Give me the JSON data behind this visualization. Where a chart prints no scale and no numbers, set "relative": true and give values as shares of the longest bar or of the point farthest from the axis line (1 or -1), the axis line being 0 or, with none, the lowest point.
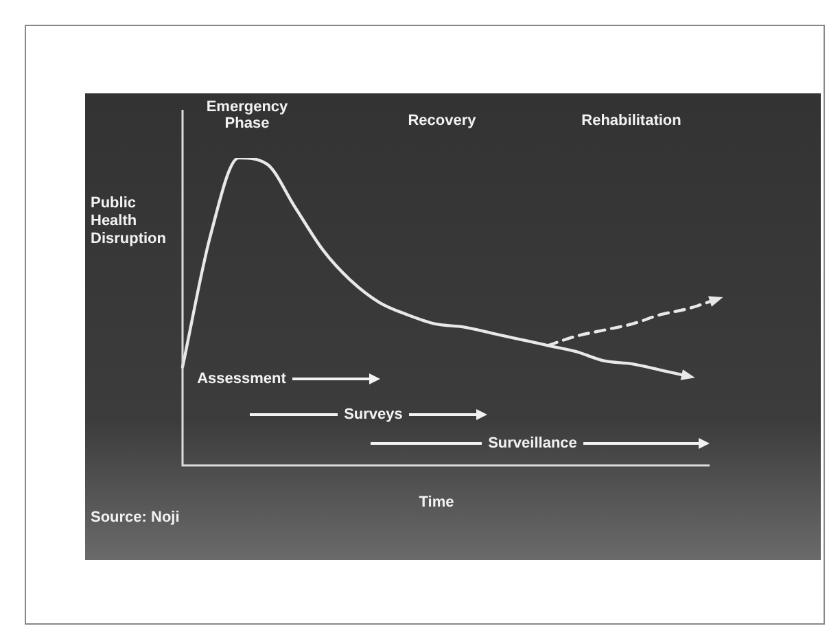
{
  "chart_data": {
    "type": "line",
    "relative": true,
    "ylabel": "Public Health Disruption",
    "xlabel": "Time",
    "categories": [
      null,
      null,
      null,
      null,
      null,
      null,
      null,
      null,
      null,
      null,
      null,
      null,
      null,
      null,
      null,
      null,
      null,
      null,
      null,
      null
    ],
    "series": [
      {
        "color": "#e8e8e8",
        "line_style": "solid",
        "values": [
          0.32,
          0.75,
          1.0,
          0.98,
          0.84,
          0.7,
          0.6,
          0.53,
          0.49,
          0.46,
          0.45,
          0.43,
          0.41,
          0.39,
          0.37,
          0.34,
          0.33,
          0.31,
          0.29,
          null
        ]
      },
      {
        "color": "#e8e8e8",
        "line_style": "dashed",
        "values": [
          null,
          null,
          null,
          null,
          null,
          null,
          null,
          null,
          null,
          null,
          null,
          null,
          null,
          0.39,
          0.42,
          0.44,
          0.46,
          0.49,
          0.51,
          0.54
        ]
      }
    ],
    "annotations": [
      "Emergency Phase",
      "Recovery",
      "Rehabilitation",
      "Assessment",
      "Surveys",
      "Surveillance",
      "Source: Noji"
    ],
    "legend": false,
    "marker": "none"
  }
}
